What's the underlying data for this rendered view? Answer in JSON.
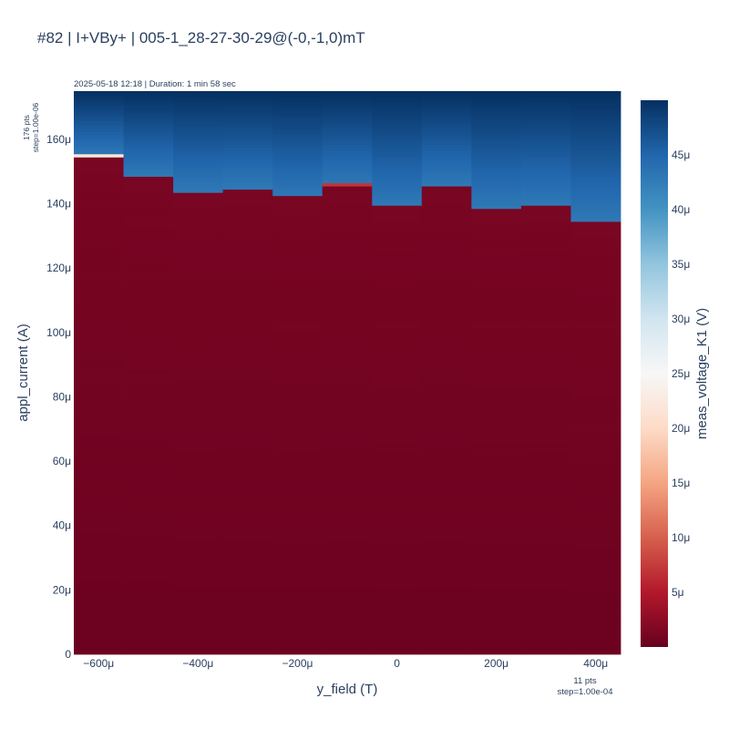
{
  "chart_data": {
    "type": "heatmap",
    "title": "#82 | I+VBy+ | 005-1_28-27-30-29@(-0,-1,0)mT",
    "subtitle": "2025-05-18 12:18 | Duration: 1 min 58 sec",
    "xlabel": "y_field (T)",
    "ylabel": "appl_current (A)",
    "colorbar_label": "meas_voltage_K1 (V)",
    "y_points_note": [
      "176 pts",
      "step=1.00e-06"
    ],
    "x_points_note": [
      "11 pts",
      "step=1.00e-04"
    ],
    "x": [
      -0.0006,
      -0.0005,
      -0.0004,
      -0.0003,
      -0.0002,
      -0.0001,
      0,
      0.0001,
      0.0002,
      0.0003,
      0.0004
    ],
    "xlim": [
      -0.00065,
      0.00045
    ],
    "ylim": [
      0,
      0.000175
    ],
    "y_step": 1e-06,
    "y_count": 176,
    "transition_current": [
      0.000155,
      0.000149,
      0.000144,
      0.000145,
      0.000142,
      0.000146,
      0.00014,
      0.000146,
      0.000139,
      0.00014,
      0.000135
    ],
    "transition_highlight": [
      {
        "x_index": 0,
        "value": 2.2e-05
      },
      {
        "x_index": 5,
        "value": 7e-06
      }
    ],
    "low_voltage_range": [
      3e-07,
      1.2e-06
    ],
    "high_voltage_range": [
      4.3e-05,
      5e-05
    ],
    "colorscale": "RdBu",
    "colorscale_stops": [
      "#67001f",
      "#b2182b",
      "#d6604d",
      "#f4a582",
      "#fddbc7",
      "#f7f7f7",
      "#d1e5f0",
      "#92c5de",
      "#4393c3",
      "#2166ac",
      "#053061"
    ],
    "zlim": [
      0,
      5e-05
    ],
    "x_ticks": [
      {
        "value": -0.0006,
        "label": "−600μ"
      },
      {
        "value": -0.0004,
        "label": "−400μ"
      },
      {
        "value": -0.0002,
        "label": "−200μ"
      },
      {
        "value": 0,
        "label": "0"
      },
      {
        "value": 0.0002,
        "label": "200μ"
      },
      {
        "value": 0.0004,
        "label": "400μ"
      }
    ],
    "y_ticks": [
      {
        "value": 0,
        "label": "0"
      },
      {
        "value": 2e-05,
        "label": "20μ"
      },
      {
        "value": 4e-05,
        "label": "40μ"
      },
      {
        "value": 6e-05,
        "label": "60μ"
      },
      {
        "value": 8e-05,
        "label": "80μ"
      },
      {
        "value": 0.0001,
        "label": "100μ"
      },
      {
        "value": 0.00012,
        "label": "120μ"
      },
      {
        "value": 0.00014,
        "label": "140μ"
      },
      {
        "value": 0.00016,
        "label": "160μ"
      }
    ],
    "colorbar_ticks": [
      {
        "value": 5e-06,
        "label": "5μ"
      },
      {
        "value": 1e-05,
        "label": "10μ"
      },
      {
        "value": 1.5e-05,
        "label": "15μ"
      },
      {
        "value": 2e-05,
        "label": "20μ"
      },
      {
        "value": 2.5e-05,
        "label": "25μ"
      },
      {
        "value": 3e-05,
        "label": "30μ"
      },
      {
        "value": 3.5e-05,
        "label": "35μ"
      },
      {
        "value": 4e-05,
        "label": "40μ"
      },
      {
        "value": 4.5e-05,
        "label": "45μ"
      }
    ],
    "grid": false,
    "legend": "colorbar-right"
  }
}
